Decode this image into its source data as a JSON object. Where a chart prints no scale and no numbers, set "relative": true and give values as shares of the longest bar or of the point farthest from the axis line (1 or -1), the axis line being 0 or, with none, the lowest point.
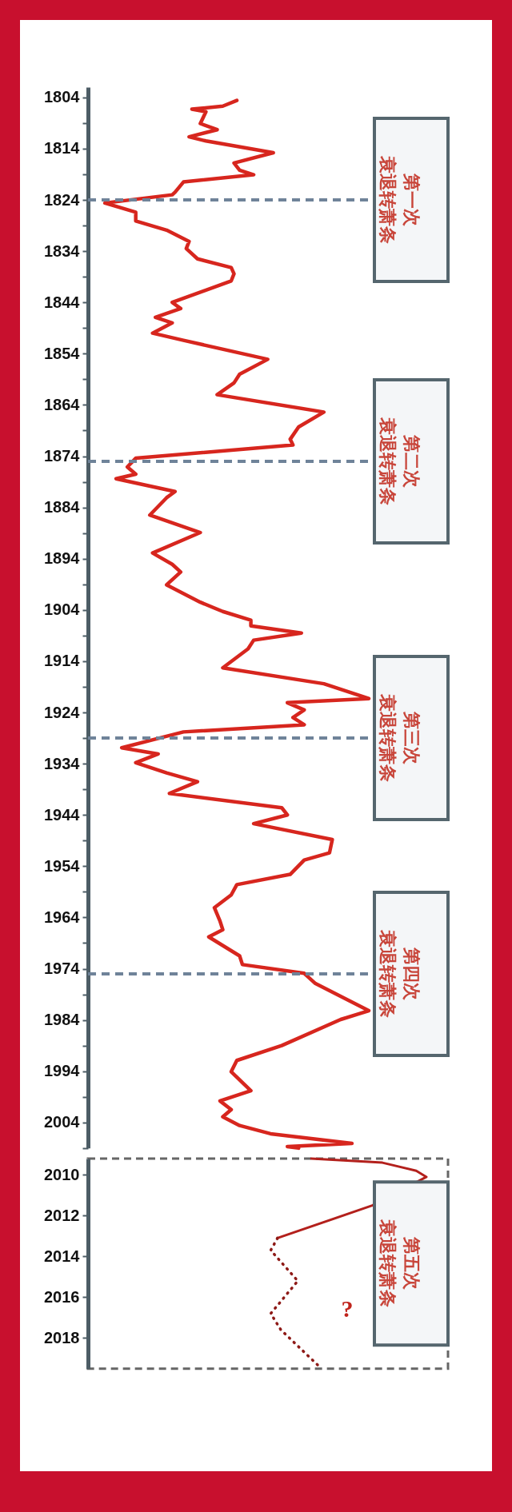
{
  "chart_data": [
    {
      "type": "line",
      "orientation": "horizontal",
      "relative": true,
      "tick_labels": "y",
      "ylim": [
        2009,
        1802
      ],
      "yticks": [
        1804,
        {
          "value": 1809,
          "label": null
        },
        1814,
        {
          "value": 1819,
          "label": null
        },
        1824,
        {
          "value": 1829,
          "label": null
        },
        1834,
        {
          "value": 1839,
          "label": null
        },
        1844,
        {
          "value": 1849,
          "label": null
        },
        1854,
        {
          "value": 1859,
          "label": null
        },
        1864,
        {
          "value": 1869,
          "label": null
        },
        1874,
        {
          "value": 1879,
          "label": null
        },
        1884,
        {
          "value": 1889,
          "label": null
        },
        1894,
        {
          "value": 1899,
          "label": null
        },
        1904,
        {
          "value": 1909,
          "label": null
        },
        1914,
        {
          "value": 1919,
          "label": null
        },
        1924,
        {
          "value": 1929,
          "label": null
        },
        1934,
        {
          "value": 1939,
          "label": null
        },
        1944,
        {
          "value": 1949,
          "label": null
        },
        1954,
        {
          "value": 1959,
          "label": null
        },
        1964,
        {
          "value": 1969,
          "label": null
        },
        1974,
        {
          "value": 1979,
          "label": null
        },
        1984,
        {
          "value": 1989,
          "label": null
        },
        1994,
        {
          "value": 1999,
          "label": null
        },
        2004,
        {
          "value": 2009,
          "label": null
        }
      ],
      "series": [
        {
          "color": "#d7261e",
          "x": [
            1804.6,
            1805.7,
            1806.3,
            1806.8,
            1809.1,
            1810.3,
            1811.7,
            1812.5,
            1814.8,
            1816.8,
            1818.2,
            1819.1,
            1820.5,
            1822.5,
            1823,
            1824.6,
            1826.4,
            1828.1,
            1829.9,
            1832.1,
            1833.5,
            1835.5,
            1837.2,
            1838.4,
            1839.8,
            1844,
            1845.2,
            1846.9,
            1848,
            1850,
            1851.4,
            1855.1,
            1858,
            1859.7,
            1862,
            1865.4,
            1868.3,
            1870.7,
            1871.8,
            1874.4,
            1876.1,
            1877.5,
            1878.4,
            1880.9,
            1882.1,
            1885.5,
            1888.9,
            1892.9,
            1895.1,
            1896.6,
            1899.1,
            1902.5,
            1904.3,
            1906,
            1907.1,
            1908.5,
            1909.9,
            1911.6,
            1915.3,
            1918.4,
            1921.3,
            1922.1,
            1923.5,
            1925,
            1926.4,
            1927.8,
            1929.2,
            1930.9,
            1932.1,
            1933.8,
            1935.8,
            1937.5,
            1939.8,
            1942.6,
            1944,
            1945.7,
            1948.8,
            1951.4,
            1952.8,
            1955.6,
            1957.6,
            1959.6,
            1962.1,
            1964.7,
            1966.4,
            1967.8,
            1971.5,
            1973.2,
            1974.9,
            1976.9,
            1982.2,
            1983.9,
            1989,
            1991.9,
            1994.1,
            1997.8,
            1999.8,
            2001.5,
            2002.9,
            2004.6,
            2006.2,
            2008.1,
            2008.7,
            2009
          ],
          "values": [
            0.53,
            0.48,
            0.37,
            0.42,
            0.4,
            0.46,
            0.36,
            0.42,
            0.66,
            0.52,
            0.54,
            0.59,
            0.34,
            0.31,
            0.3,
            0.06,
            0.17,
            0.17,
            0.28,
            0.36,
            0.35,
            0.39,
            0.51,
            0.52,
            0.51,
            0.3,
            0.33,
            0.24,
            0.3,
            0.23,
            0.34,
            0.64,
            0.54,
            0.52,
            0.46,
            0.84,
            0.75,
            0.72,
            0.73,
            0.17,
            0.14,
            0.17,
            0.1,
            0.31,
            0.28,
            0.22,
            0.4,
            0.23,
            0.3,
            0.33,
            0.28,
            0.4,
            0.48,
            0.58,
            0.58,
            0.76,
            0.59,
            0.57,
            0.48,
            0.84,
            1.0,
            0.71,
            0.77,
            0.73,
            0.77,
            0.34,
            0.24,
            0.12,
            0.25,
            0.17,
            0.28,
            0.39,
            0.29,
            0.69,
            0.71,
            0.59,
            0.87,
            0.86,
            0.77,
            0.72,
            0.53,
            0.51,
            0.45,
            0.47,
            0.48,
            0.43,
            0.54,
            0.55,
            0.77,
            0.81,
            1.0,
            0.9,
            0.69,
            0.53,
            0.51,
            0.58,
            0.47,
            0.51,
            0.48,
            0.54,
            0.65,
            0.94,
            0.71,
            0.75
          ]
        }
      ],
      "ref_lines": [
        {
          "axis": "y",
          "value": 1824,
          "label": "第一次衰退转萧条",
          "color": "#6f8399",
          "line_style": "dashed"
        },
        {
          "axis": "y",
          "value": 1875,
          "label": "第二次衰退转萧条",
          "color": "#6f8399",
          "line_style": "dashed"
        },
        {
          "axis": "y",
          "value": 1929,
          "label": "第三次衰退转萧条",
          "color": "#6f8399",
          "line_style": "dashed"
        },
        {
          "axis": "y",
          "value": 1975,
          "label": "第四次衰退转萧条",
          "color": "#6f8399",
          "line_style": "dashed"
        }
      ]
    },
    {
      "type": "line",
      "orientation": "horizontal",
      "relative": true,
      "tick_labels": "y",
      "ylim": [
        2019.5,
        2009.2
      ],
      "yticks": [
        2010,
        2012,
        2014,
        2016,
        2018
      ],
      "series": [
        {
          "color": "#b3201c",
          "x": [
            2009.2,
            2009.4,
            2009.8,
            2010.1,
            2011.5,
            2013.1
          ],
          "values": [
            0.66,
            0.87,
            0.97,
            1.0,
            0.84,
            0.56
          ]
        },
        {
          "color": "#8e1a17",
          "line_style": "dotted",
          "x": [
            2013.1,
            2013.7,
            2015.2,
            2016.8,
            2017.6,
            2019.5
          ],
          "values": [
            0.56,
            0.54,
            0.62,
            0.54,
            0.57,
            0.69
          ]
        }
      ],
      "annotations": [
        "第五次衰退转萧条",
        "?"
      ]
    }
  ]
}
